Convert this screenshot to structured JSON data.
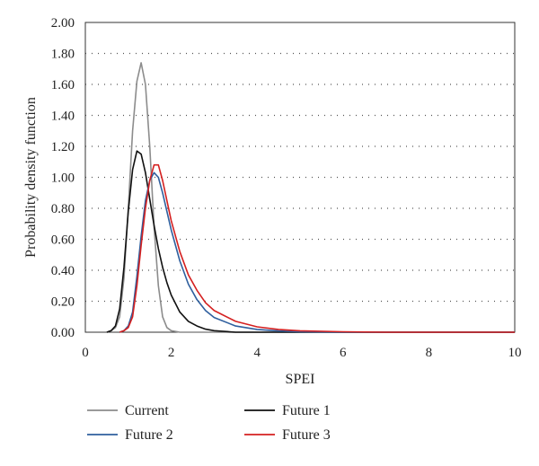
{
  "chart_data": {
    "type": "line",
    "xlabel": "SPEI",
    "ylabel": "Probability density function",
    "xlim": [
      0,
      10
    ],
    "ylim": [
      0,
      2.0
    ],
    "xticks": [
      0,
      2,
      4,
      6,
      8,
      10
    ],
    "yticks": [
      "0.00",
      "0.20",
      "0.40",
      "0.60",
      "0.80",
      "1.00",
      "1.20",
      "1.40",
      "1.60",
      "1.80",
      "2.00"
    ],
    "grid": "horizontal dotted",
    "legend_position": "bottom",
    "series": [
      {
        "name": "Current",
        "color": "#8c8c8c",
        "x": [
          0.5,
          0.6,
          0.7,
          0.8,
          0.9,
          1.0,
          1.1,
          1.2,
          1.3,
          1.4,
          1.5,
          1.6,
          1.7,
          1.8,
          1.9,
          2.0,
          2.2,
          2.5,
          10
        ],
        "y": [
          0,
          0.01,
          0.03,
          0.1,
          0.35,
          0.8,
          1.3,
          1.62,
          1.74,
          1.6,
          1.2,
          0.68,
          0.3,
          0.1,
          0.03,
          0.01,
          0,
          0,
          0
        ]
      },
      {
        "name": "Future 1",
        "color": "#111111",
        "x": [
          0.5,
          0.6,
          0.7,
          0.8,
          0.9,
          1.0,
          1.1,
          1.2,
          1.3,
          1.4,
          1.5,
          1.6,
          1.7,
          1.8,
          1.9,
          2.0,
          2.2,
          2.4,
          2.6,
          2.8,
          3.0,
          3.5,
          4.0,
          5.0,
          10
        ],
        "y": [
          0,
          0.01,
          0.04,
          0.15,
          0.42,
          0.78,
          1.05,
          1.17,
          1.15,
          1.03,
          0.86,
          0.69,
          0.54,
          0.42,
          0.32,
          0.24,
          0.13,
          0.07,
          0.04,
          0.02,
          0.01,
          0,
          0,
          0,
          0
        ]
      },
      {
        "name": "Future 2",
        "color": "#2f5f9e",
        "x": [
          0.8,
          0.9,
          1.0,
          1.1,
          1.2,
          1.3,
          1.4,
          1.5,
          1.6,
          1.7,
          1.8,
          1.9,
          2.0,
          2.2,
          2.4,
          2.6,
          2.8,
          3.0,
          3.5,
          4.0,
          4.5,
          5.0,
          6.0,
          10
        ],
        "y": [
          0,
          0.01,
          0.04,
          0.13,
          0.36,
          0.62,
          0.85,
          0.98,
          1.03,
          1.0,
          0.9,
          0.78,
          0.66,
          0.46,
          0.31,
          0.21,
          0.14,
          0.095,
          0.04,
          0.018,
          0.008,
          0.003,
          0,
          0
        ]
      },
      {
        "name": "Future 3",
        "color": "#d42020",
        "x": [
          0.8,
          0.9,
          1.0,
          1.1,
          1.2,
          1.3,
          1.4,
          1.5,
          1.6,
          1.7,
          1.8,
          1.9,
          2.0,
          2.2,
          2.4,
          2.6,
          2.8,
          3.0,
          3.5,
          4.0,
          4.5,
          5.0,
          6.0,
          7.0,
          10
        ],
        "y": [
          0,
          0.01,
          0.03,
          0.1,
          0.3,
          0.56,
          0.8,
          0.98,
          1.08,
          1.08,
          0.98,
          0.85,
          0.72,
          0.52,
          0.37,
          0.27,
          0.19,
          0.14,
          0.07,
          0.035,
          0.018,
          0.009,
          0.003,
          0,
          0
        ]
      }
    ]
  }
}
